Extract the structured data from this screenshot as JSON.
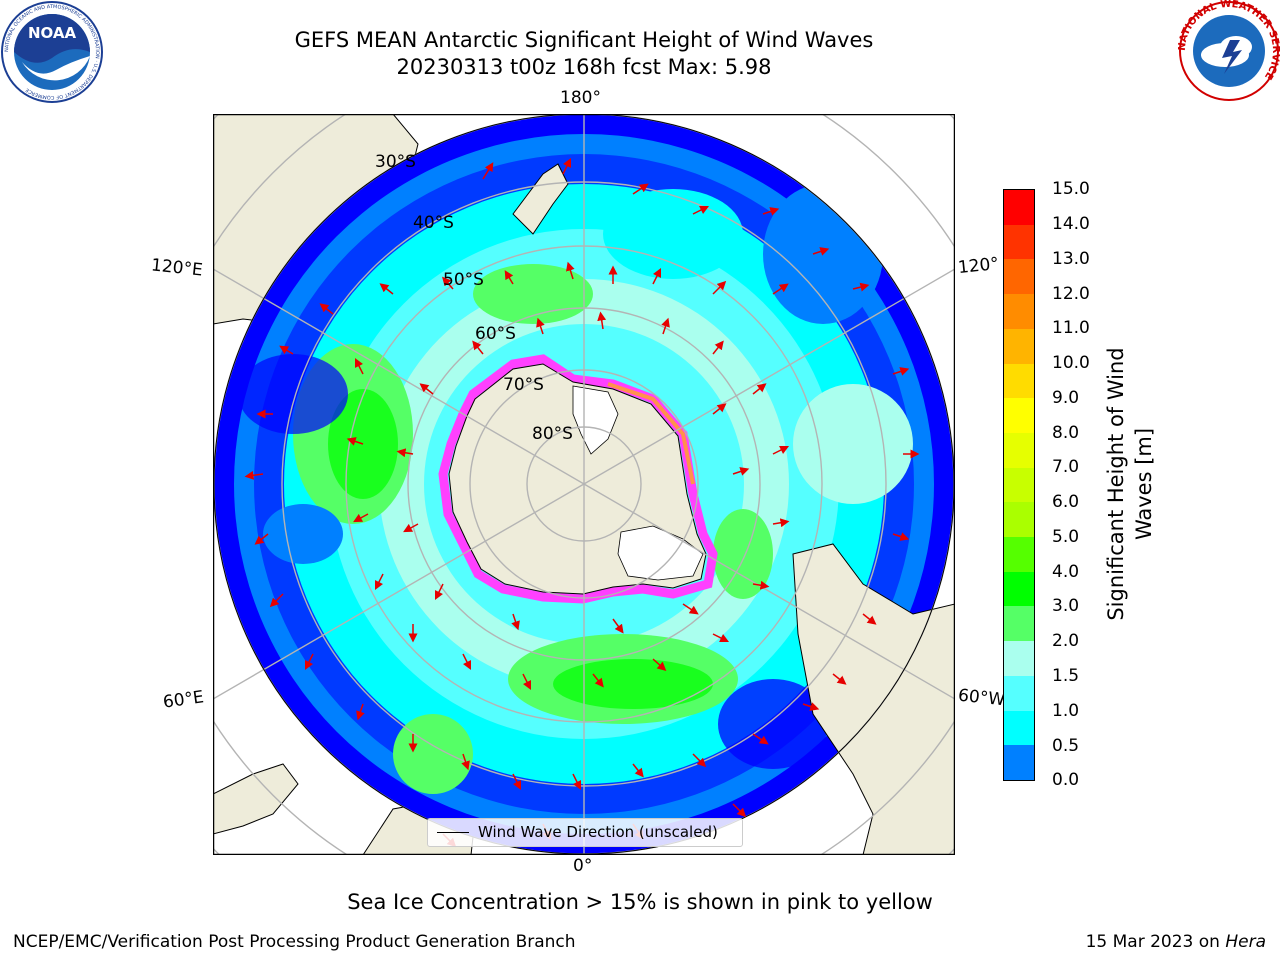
{
  "header": {
    "title_line1": "GEFS MEAN Antarctic Significant Height of Wind Waves",
    "title_line2": "20230313 t00z 168h fcst   Max: 5.98"
  },
  "logos": {
    "noaa_text": "NOAA",
    "noaa_ring_text": "NATIONAL OCEANIC AND ATMOSPHERIC ADMINISTRATION · U.S. DEPARTMENT OF COMMERCE",
    "nws_ring_text": "NATIONAL WEATHER SERVICE"
  },
  "map": {
    "longitude_labels": {
      "top": "180°",
      "bottom": "0°",
      "left_upper": "120°E",
      "left_lower": "60°E",
      "right_upper": "120°",
      "right_lower": "60°W"
    },
    "latitude_labels": [
      "30°S",
      "40°S",
      "50°S",
      "60°S",
      "70°S",
      "80°S"
    ],
    "legend": "Wind Wave Direction (unscaled)",
    "colors": {
      "ocean_low": "#0000ff",
      "land": "#eeecda",
      "ice": "#ff40ff",
      "arrow": "#e60000",
      "grid": "#b4b4b4"
    }
  },
  "colorbar": {
    "label": "Significant Height of Wind Waves [m]",
    "label_line1": "Significant Height of Wind",
    "label_line2": "Waves [m]",
    "ticks": [
      "15.0",
      "14.0",
      "13.0",
      "12.0",
      "11.0",
      "10.0",
      "9.0",
      "8.0",
      "7.0",
      "6.0",
      "5.0",
      "4.0",
      "3.0",
      "2.0",
      "1.5",
      "1.0",
      "0.5",
      "0.0"
    ],
    "colors_top_to_bottom": [
      "#ff0000",
      "#ff3300",
      "#ff6600",
      "#ff8c00",
      "#ffb400",
      "#ffdc00",
      "#ffff00",
      "#e6ff00",
      "#c8ff00",
      "#aaff00",
      "#55ff00",
      "#00ff00",
      "#55ff66",
      "#aaffee",
      "#55ffff",
      "#00ffff",
      "#0080ff",
      "#0000ff"
    ]
  },
  "caption": "Sea Ice Concentration > 15% is shown in pink to yellow",
  "footer": {
    "left": "NCEP/EMC/Verification Post Processing Product Generation Branch",
    "right_date": "15 Mar 2023 on ",
    "right_host": "Hera"
  }
}
